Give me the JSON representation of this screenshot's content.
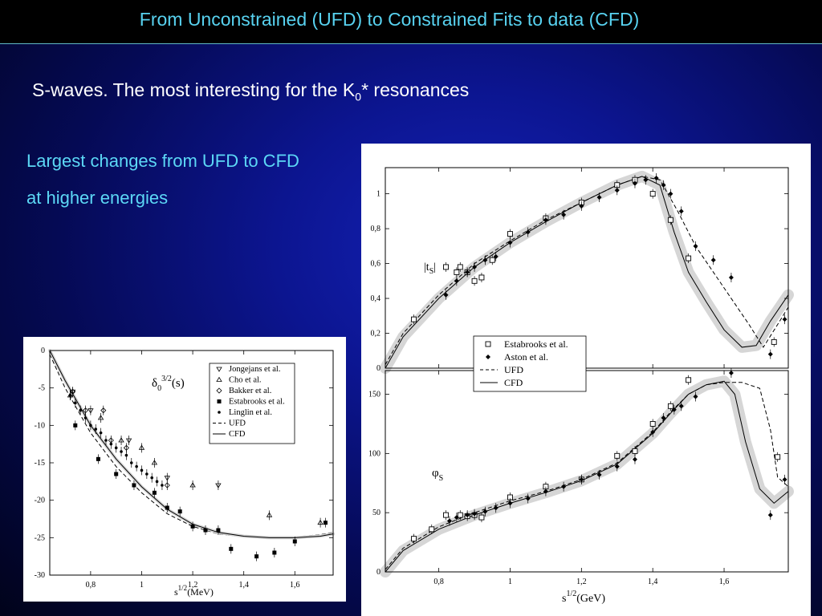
{
  "slide": {
    "title": "From Unconstrained (UFD) to Constrained Fits to data (CFD)",
    "subtitle_pre": "S-waves. The most interesting for the K",
    "subtitle_sub": "0",
    "subtitle_post": "* resonances",
    "notes": [
      "Largest changes from UFD to CFD",
      "at higher energies"
    ]
  },
  "chart_data": [
    {
      "type": "scatter",
      "title": "δ0 3/2(s)",
      "label_main": "δ",
      "label_sub": "0",
      "label_sup": "3/2",
      "label_arg": "(s)",
      "xlabel_base": "s",
      "xlabel_sup": "1/2",
      "xlabel_unit": "(MeV)",
      "ylabel": "",
      "xlim": [
        0.64,
        1.75
      ],
      "ylim": [
        -30,
        0
      ],
      "xticks": [
        0.8,
        1.0,
        1.2,
        1.4,
        1.6
      ],
      "xtick_labels": [
        "0,8",
        "1",
        "1,2",
        "1,4",
        "1,6"
      ],
      "yticks": [
        0,
        -5,
        -10,
        -15,
        -20,
        -25,
        -30
      ],
      "ytick_labels": [
        "0",
        "-5",
        "-10",
        "-15",
        "-20",
        "-25",
        "-30"
      ],
      "legend": [
        "Jongejans et al.",
        "Cho et al.",
        "Bakker et al.",
        "Estabrooks et al.",
        "Linglin et al.",
        "UFD",
        "CFD"
      ],
      "series": [
        {
          "name": "Jongejans et al.",
          "marker": "triangle-down",
          "x": [
            0.73,
            0.8,
            0.95,
            1.1,
            1.3
          ],
          "y": [
            -5.5,
            -8,
            -12,
            -17,
            -18
          ]
        },
        {
          "name": "Cho et al.",
          "marker": "triangle-up",
          "x": [
            0.72,
            0.84,
            0.92,
            1.0,
            1.05,
            1.2,
            1.5,
            1.7
          ],
          "y": [
            -6,
            -9,
            -12,
            -13,
            -15,
            -18,
            -22,
            -23
          ]
        },
        {
          "name": "Bakker et al.",
          "marker": "diamond",
          "x": [
            0.73,
            0.78,
            0.85,
            0.88,
            0.94,
            1.1
          ],
          "y": [
            -5.5,
            -8,
            -8,
            -12,
            -13,
            -18
          ]
        },
        {
          "name": "Estabrooks et al.",
          "marker": "square",
          "x": [
            0.74,
            0.83,
            0.9,
            0.97,
            1.05,
            1.1,
            1.15,
            1.2,
            1.25,
            1.3,
            1.35,
            1.45,
            1.52,
            1.6,
            1.72
          ],
          "y": [
            -10,
            -14.5,
            -16.5,
            -18,
            -19,
            -21,
            -21.5,
            -23.5,
            -24,
            -24,
            -26.5,
            -27.5,
            -27,
            -25.5,
            -23
          ]
        },
        {
          "name": "Linglin et al.",
          "marker": "dot",
          "x": [
            0.72,
            0.74,
            0.76,
            0.78,
            0.8,
            0.82,
            0.84,
            0.86,
            0.88,
            0.9,
            0.92,
            0.94,
            0.96,
            0.98,
            1.0,
            1.02,
            1.04,
            1.06,
            1.08
          ],
          "y": [
            -6,
            -7,
            -8,
            -9,
            -10,
            -10.5,
            -11,
            -12,
            -12.5,
            -13,
            -13.5,
            -14,
            -15,
            -15.5,
            -16,
            -16.5,
            -17,
            -17.5,
            -18
          ]
        }
      ],
      "curves": [
        {
          "name": "UFD",
          "style": "dashed",
          "x": [
            0.64,
            0.7,
            0.8,
            0.9,
            1.0,
            1.1,
            1.2,
            1.3,
            1.4,
            1.5,
            1.6,
            1.7,
            1.75
          ],
          "y": [
            -0.5,
            -5,
            -11,
            -15.5,
            -19,
            -21.8,
            -23.5,
            -24.5,
            -24.9,
            -25,
            -24.9,
            -24.6,
            -24.3
          ]
        },
        {
          "name": "CFD",
          "style": "solid",
          "x": [
            0.64,
            0.7,
            0.8,
            0.9,
            1.0,
            1.1,
            1.2,
            1.3,
            1.4,
            1.5,
            1.6,
            1.7,
            1.75
          ],
          "y": [
            0,
            -4,
            -10,
            -14.5,
            -18.2,
            -21.2,
            -23.2,
            -24.3,
            -24.8,
            -25,
            -25,
            -24.8,
            -24.5
          ]
        }
      ]
    },
    {
      "type": "scatter",
      "title": "|t̂S|",
      "label_main": "|t",
      "label_sub": "S",
      "label_post": "|",
      "xlim": [
        0.65,
        1.78
      ],
      "ylim": [
        0,
        1.15
      ],
      "yticks": [
        0,
        0.2,
        0.4,
        0.6,
        0.8,
        1.0
      ],
      "ytick_labels": [
        "0",
        "0,2",
        "0,4",
        "0,6",
        "0,8",
        "1"
      ],
      "legend": [
        "Estabrooks et al.",
        "Aston et al.",
        "UFD",
        "CFD"
      ],
      "series": [
        {
          "name": "Estabrooks et al.",
          "marker": "open-square",
          "x": [
            0.73,
            0.82,
            0.85,
            0.86,
            0.88,
            0.9,
            0.92,
            0.95,
            1.0,
            1.1,
            1.2,
            1.3,
            1.35,
            1.4,
            1.45,
            1.5,
            1.74
          ],
          "y": [
            0.28,
            0.58,
            0.55,
            0.58,
            0.55,
            0.5,
            0.52,
            0.62,
            0.77,
            0.86,
            0.95,
            1.05,
            1.08,
            1.0,
            0.85,
            0.63,
            0.15
          ]
        },
        {
          "name": "Aston et al.",
          "marker": "filled-diamond",
          "x": [
            0.82,
            0.85,
            0.88,
            0.9,
            0.93,
            0.96,
            1.0,
            1.05,
            1.1,
            1.15,
            1.2,
            1.25,
            1.3,
            1.35,
            1.38,
            1.41,
            1.43,
            1.45,
            1.48,
            1.52,
            1.57,
            1.62,
            1.73,
            1.77
          ],
          "y": [
            0.42,
            0.5,
            0.55,
            0.58,
            0.62,
            0.64,
            0.72,
            0.78,
            0.85,
            0.88,
            0.93,
            0.98,
            1.02,
            1.06,
            1.08,
            1.09,
            1.05,
            1.0,
            0.9,
            0.7,
            0.62,
            0.52,
            0.08,
            0.28
          ]
        }
      ],
      "curves": [
        {
          "name": "UFD",
          "style": "dashed",
          "x": [
            0.65,
            0.7,
            0.8,
            0.9,
            1.0,
            1.1,
            1.2,
            1.3,
            1.37,
            1.42,
            1.47,
            1.52,
            1.57,
            1.62,
            1.67,
            1.71,
            1.75,
            1.78
          ],
          "y": [
            0.02,
            0.2,
            0.42,
            0.6,
            0.73,
            0.85,
            0.95,
            1.05,
            1.1,
            1.08,
            0.9,
            0.7,
            0.55,
            0.4,
            0.25,
            0.12,
            0.25,
            0.35
          ]
        },
        {
          "name": "CFD",
          "style": "solid",
          "x": [
            0.65,
            0.7,
            0.8,
            0.9,
            1.0,
            1.1,
            1.2,
            1.3,
            1.37,
            1.42,
            1.46,
            1.5,
            1.55,
            1.6,
            1.65,
            1.69,
            1.73,
            1.78
          ],
          "y": [
            0,
            0.18,
            0.4,
            0.58,
            0.72,
            0.84,
            0.95,
            1.05,
            1.1,
            1.05,
            0.78,
            0.55,
            0.38,
            0.22,
            0.12,
            0.13,
            0.27,
            0.42
          ]
        }
      ]
    },
    {
      "type": "scatter",
      "title": "φS",
      "label_main": "φ",
      "label_sub": "S",
      "xlabel_base": "s",
      "xlabel_sup": "1/2",
      "xlabel_unit": "(GeV)",
      "xlim": [
        0.65,
        1.78
      ],
      "ylim": [
        0,
        170
      ],
      "xticks": [
        0.8,
        1.0,
        1.2,
        1.4,
        1.6
      ],
      "xtick_labels": [
        "0,8",
        "1",
        "1,2",
        "1,4",
        "1,6"
      ],
      "yticks": [
        0,
        50,
        100,
        150
      ],
      "ytick_labels": [
        "0",
        "50",
        "100",
        "150"
      ],
      "series": [
        {
          "name": "Estabrooks et al.",
          "marker": "open-square",
          "x": [
            0.73,
            0.78,
            0.82,
            0.86,
            0.88,
            0.9,
            0.92,
            1.0,
            1.1,
            1.2,
            1.3,
            1.35,
            1.4,
            1.45,
            1.5,
            1.75
          ],
          "y": [
            28,
            36,
            48,
            48,
            47,
            48,
            46,
            63,
            72,
            78,
            98,
            102,
            125,
            140,
            162,
            97
          ]
        },
        {
          "name": "Aston et al.",
          "marker": "filled-diamond",
          "x": [
            0.83,
            0.85,
            0.88,
            0.9,
            0.93,
            0.96,
            1.0,
            1.05,
            1.1,
            1.15,
            1.2,
            1.25,
            1.3,
            1.35,
            1.4,
            1.43,
            1.46,
            1.48,
            1.52,
            1.58,
            1.62,
            1.73,
            1.77
          ],
          "y": [
            43,
            46,
            48,
            49,
            51,
            54,
            58,
            62,
            68,
            72,
            78,
            82,
            89,
            95,
            118,
            130,
            137,
            140,
            148,
            172,
            168,
            48,
            78
          ]
        }
      ],
      "curves": [
        {
          "name": "UFD",
          "style": "dashed",
          "x": [
            0.65,
            0.7,
            0.8,
            0.9,
            1.0,
            1.1,
            1.2,
            1.3,
            1.4,
            1.45,
            1.5,
            1.55,
            1.6,
            1.65,
            1.7,
            1.73,
            1.75,
            1.78
          ],
          "y": [
            2,
            20,
            38,
            50,
            60,
            68,
            78,
            92,
            118,
            135,
            150,
            158,
            160,
            160,
            155,
            120,
            80,
            72
          ]
        },
        {
          "name": "CFD",
          "style": "solid",
          "x": [
            0.65,
            0.7,
            0.8,
            0.9,
            1.0,
            1.1,
            1.2,
            1.3,
            1.4,
            1.45,
            1.5,
            1.55,
            1.6,
            1.63,
            1.66,
            1.7,
            1.74,
            1.78
          ],
          "y": [
            0,
            18,
            36,
            48,
            58,
            67,
            77,
            91,
            117,
            134,
            150,
            158,
            161,
            150,
            110,
            70,
            58,
            68
          ]
        }
      ]
    }
  ]
}
